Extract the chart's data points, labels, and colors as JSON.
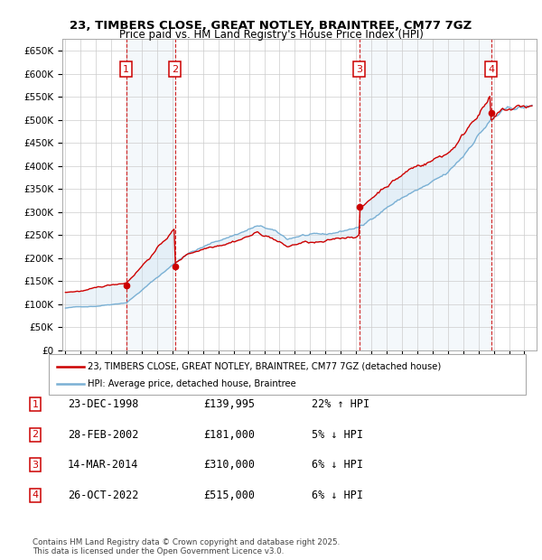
{
  "title": "23, TIMBERS CLOSE, GREAT NOTLEY, BRAINTREE, CM77 7GZ",
  "subtitle": "Price paid vs. HM Land Registry's House Price Index (HPI)",
  "ylim": [
    0,
    675000
  ],
  "yticks": [
    0,
    50000,
    100000,
    150000,
    200000,
    250000,
    300000,
    350000,
    400000,
    450000,
    500000,
    550000,
    600000,
    650000
  ],
  "ytick_labels": [
    "£0",
    "£50K",
    "£100K",
    "£150K",
    "£200K",
    "£250K",
    "£300K",
    "£350K",
    "£400K",
    "£450K",
    "£500K",
    "£550K",
    "£600K",
    "£650K"
  ],
  "xmin": 1994.8,
  "xmax": 2025.8,
  "purchase_dates": [
    1998.97,
    2002.16,
    2014.21,
    2022.82
  ],
  "purchase_prices": [
    139995,
    181000,
    310000,
    515000
  ],
  "purchase_numbers": [
    "1",
    "2",
    "3",
    "4"
  ],
  "red_line_color": "#cc0000",
  "blue_line_color": "#7ab0d4",
  "blue_fill_color": "#c8dff0",
  "legend_label_red": "23, TIMBERS CLOSE, GREAT NOTLEY, BRAINTREE, CM77 7GZ (detached house)",
  "legend_label_blue": "HPI: Average price, detached house, Braintree",
  "table_data": [
    [
      "1",
      "23-DEC-1998",
      "£139,995",
      "22% ↑ HPI"
    ],
    [
      "2",
      "28-FEB-2002",
      "£181,000",
      "5% ↓ HPI"
    ],
    [
      "3",
      "14-MAR-2014",
      "£310,000",
      "6% ↓ HPI"
    ],
    [
      "4",
      "26-OCT-2022",
      "£515,000",
      "6% ↓ HPI"
    ]
  ],
  "footnote": "Contains HM Land Registry data © Crown copyright and database right 2025.\nThis data is licensed under the Open Government Licence v3.0.",
  "background_color": "#ffffff",
  "grid_color": "#cccccc"
}
